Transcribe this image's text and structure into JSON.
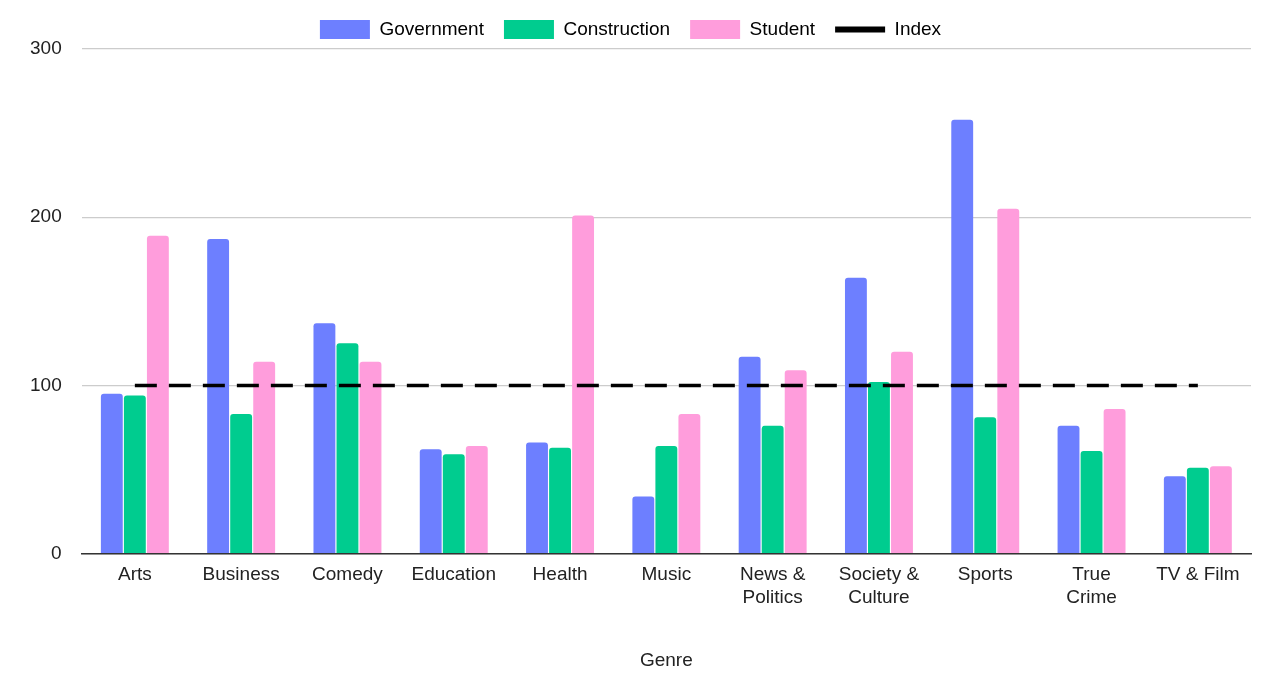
{
  "chart_data": {
    "type": "bar",
    "xlabel": "Genre",
    "categories": [
      "Arts",
      "Business",
      "Comedy",
      "Education",
      "Health",
      "Music",
      "News & Politics",
      "Society & Culture",
      "Sports",
      "True Crime",
      "TV & Film"
    ],
    "series": [
      {
        "name": "Government",
        "color": "#6d7fff",
        "values": [
          95,
          187,
          137,
          62,
          66,
          34,
          117,
          164,
          258,
          76,
          46
        ]
      },
      {
        "name": "Construction",
        "color": "#00cc8f",
        "values": [
          94,
          83,
          125,
          59,
          63,
          64,
          76,
          102,
          81,
          61,
          51
        ]
      },
      {
        "name": "Student",
        "color": "#ff9ddc",
        "values": [
          189,
          114,
          114,
          64,
          201,
          83,
          109,
          120,
          205,
          86,
          52
        ]
      },
      {
        "name": "Index",
        "type": "line",
        "color": "#000000",
        "line_style": "dashed",
        "marker": "none",
        "values": [
          100,
          100,
          100,
          100,
          100,
          100,
          100,
          100,
          100,
          100,
          100
        ]
      }
    ],
    "ylim": [
      0,
      300
    ],
    "yticks": [
      0,
      100,
      200,
      300
    ],
    "grid": "y",
    "legend": "top"
  }
}
